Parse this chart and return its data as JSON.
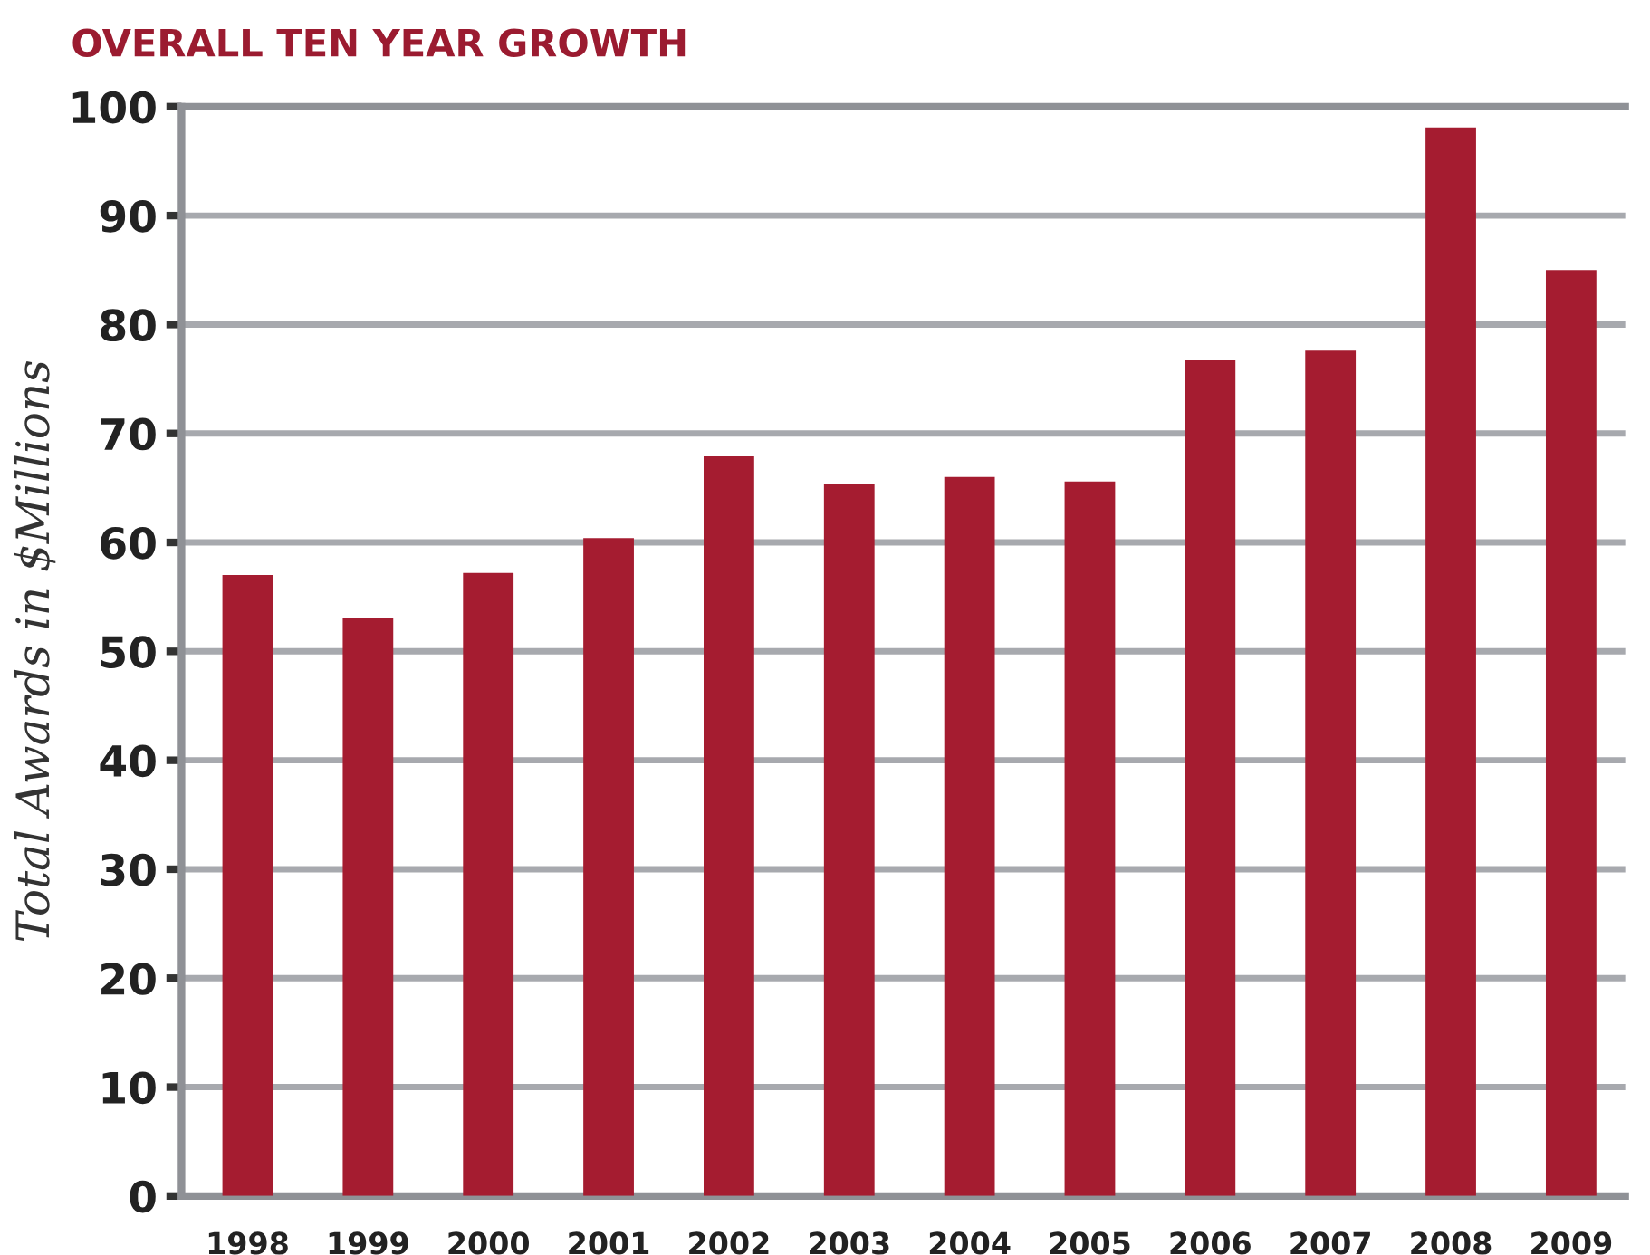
{
  "chart_data": {
    "type": "bar",
    "title": "OVERALL TEN YEAR GROWTH",
    "ylabel": "Total Awards in $Millions",
    "categories": [
      "1998",
      "1999",
      "2000",
      "2001",
      "2002",
      "2003",
      "2004",
      "2005",
      "2006",
      "2007",
      "2008",
      "2009"
    ],
    "values": [
      57.0,
      53.1,
      57.2,
      60.4,
      67.9,
      65.4,
      66.0,
      65.6,
      76.7,
      77.6,
      98.1,
      85.0
    ],
    "color": "#a51c30",
    "ylim": [
      0,
      100
    ],
    "yticks": [
      0,
      10,
      20,
      30,
      40,
      50,
      60,
      70,
      80,
      90,
      100
    ],
    "grid": "y"
  }
}
